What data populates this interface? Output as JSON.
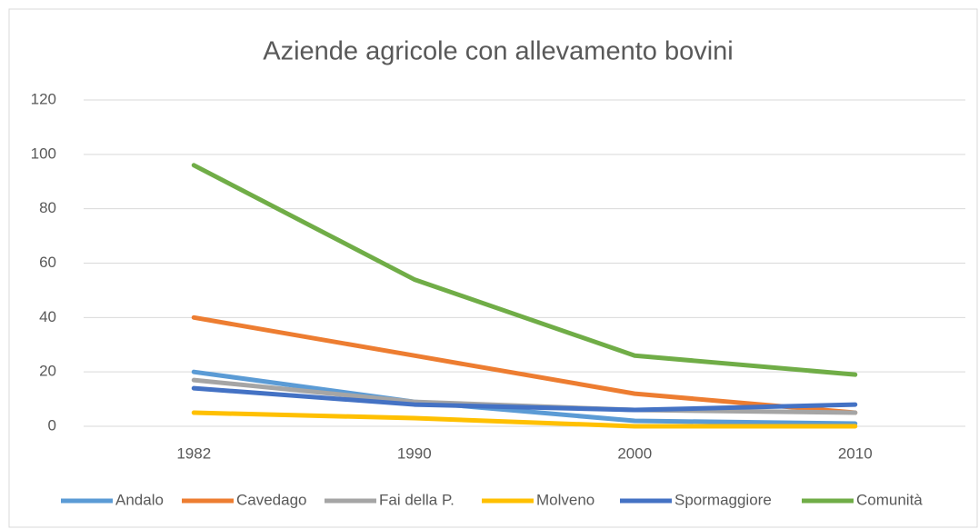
{
  "chart_data": {
    "type": "line",
    "title": "Aziende agricole con allevamento bovini",
    "categories": [
      "1982",
      "1990",
      "2000",
      "2010"
    ],
    "series": [
      {
        "name": "Andalo",
        "color": "#5b9bd5",
        "values": [
          20,
          9,
          2,
          1
        ]
      },
      {
        "name": "Cavedago",
        "color": "#ed7d31",
        "values": [
          40,
          26,
          12,
          5
        ]
      },
      {
        "name": "Fai della P.",
        "color": "#a5a5a5",
        "values": [
          17,
          9,
          6,
          5
        ]
      },
      {
        "name": "Molveno",
        "color": "#ffc000",
        "values": [
          5,
          3,
          0,
          0
        ]
      },
      {
        "name": "Spormaggiore",
        "color": "#4472c4",
        "values": [
          14,
          8,
          6,
          8
        ]
      },
      {
        "name": "Comunità",
        "color": "#70ad47",
        "values": [
          96,
          54,
          26,
          19
        ]
      }
    ],
    "ylim": [
      0,
      120
    ],
    "yticks": [
      0,
      20,
      40,
      60,
      80,
      100,
      120
    ],
    "grid": true,
    "legend": "bottom"
  }
}
